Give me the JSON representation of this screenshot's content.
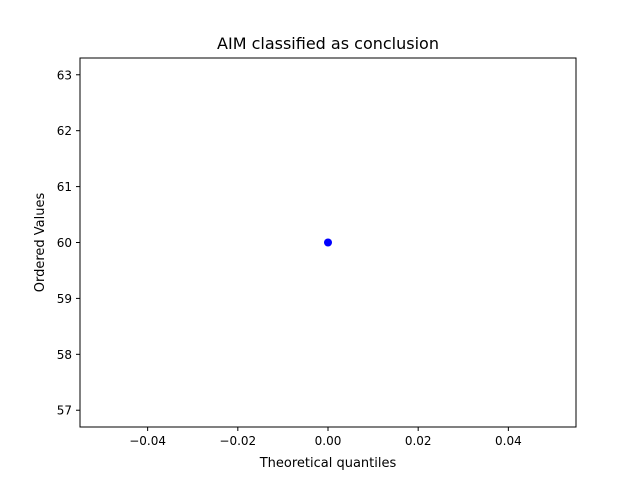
{
  "chart_data": {
    "type": "scatter",
    "title": "AIM classified as conclusion",
    "xlabel": "Theoretical quantiles",
    "ylabel": "Ordered Values",
    "xlim": [
      -0.055,
      0.055
    ],
    "ylim": [
      56.7,
      63.3
    ],
    "x_ticks": [
      -0.04,
      -0.02,
      0.0,
      0.02,
      0.04
    ],
    "x_tick_labels": [
      "−0.04",
      "−0.02",
      "0.00",
      "0.02",
      "0.04"
    ],
    "y_ticks": [
      57,
      58,
      59,
      60,
      61,
      62,
      63
    ],
    "y_tick_labels": [
      "57",
      "58",
      "59",
      "60",
      "61",
      "62",
      "63"
    ],
    "grid": false,
    "series": [
      {
        "points": [
          {
            "x": 0.0,
            "y": 60
          }
        ],
        "color": "#0000ff",
        "marker": "circle"
      }
    ]
  }
}
